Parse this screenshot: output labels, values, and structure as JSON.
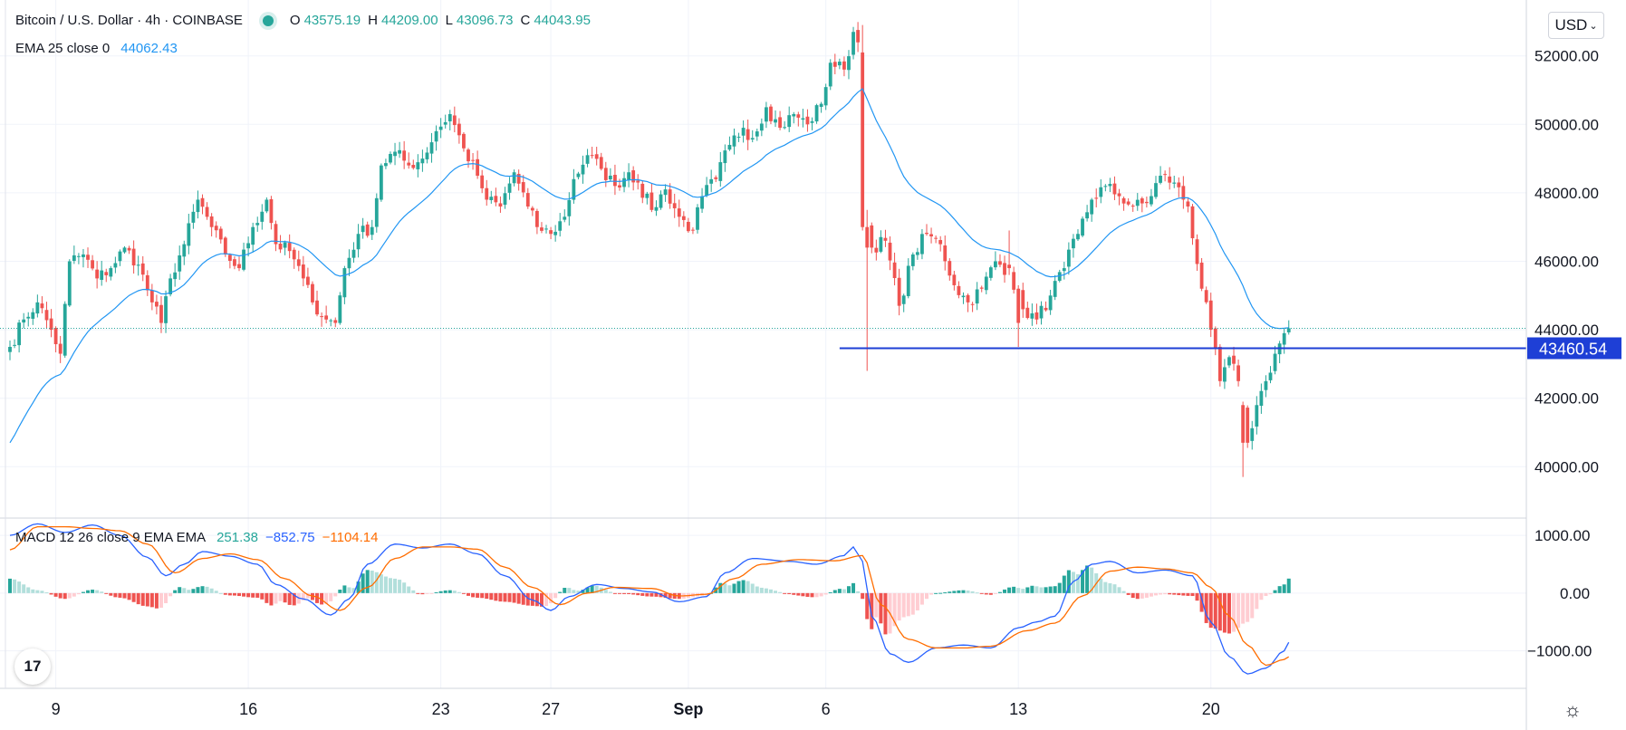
{
  "header": {
    "symbol_title": "Bitcoin / U.S. Dollar · 4h · COINBASE",
    "ohlc": [
      {
        "label": "O",
        "value": "43575.19"
      },
      {
        "label": "H",
        "value": "44209.00"
      },
      {
        "label": "L",
        "value": "43096.73"
      },
      {
        "label": "C",
        "value": "44043.95"
      }
    ],
    "ema_label": "EMA 25 close 0",
    "ema_value": "44062.43",
    "macd_label": "MACD 12 26 close 9 EMA EMA",
    "macd_values": [
      "251.38",
      "−852.75",
      "−1104.14"
    ]
  },
  "currency_button": {
    "label": "USD",
    "icon": "chevron-down-icon"
  },
  "logo_text": "17",
  "colors": {
    "up": "#26a69a",
    "down": "#ef5350",
    "ema": "#2196f3",
    "macd_line": "#2962ff",
    "signal_line": "#ff6d00",
    "hist_up_strong": "#26a69a",
    "hist_up_weak": "#b2dfdb",
    "hist_down_strong": "#ef5350",
    "hist_down_weak": "#ffcdd2",
    "grid": "#f0f3fa",
    "level_line": "#1e3fd6"
  },
  "chart_data": [
    {
      "type": "candlestick",
      "title": "Bitcoin / U.S. Dollar · 4h · COINBASE",
      "ylim": [
        38500,
        53500
      ],
      "x_range_bars": [
        0,
        258
      ],
      "y_ticks": [
        "40000.00",
        "42000.00",
        "44000.00",
        "46000.00",
        "48000.00",
        "50000.00",
        "52000.00"
      ],
      "x_tick_labels": [
        {
          "label": "9",
          "bar": 10
        },
        {
          "label": "16",
          "bar": 52
        },
        {
          "label": "23",
          "bar": 94
        },
        {
          "label": "27",
          "bar": 118
        },
        {
          "label": "Sep",
          "bar": 148
        },
        {
          "label": "6",
          "bar": 178
        },
        {
          "label": "13",
          "bar": 220
        },
        {
          "label": "20",
          "bar": 262
        }
      ],
      "anchors": [
        [
          0,
          43500
        ],
        [
          3,
          44300
        ],
        [
          6,
          44800
        ],
        [
          9,
          44000
        ],
        [
          11,
          43300
        ],
        [
          13,
          46000
        ],
        [
          16,
          46200
        ],
        [
          19,
          45500
        ],
        [
          22,
          45800
        ],
        [
          25,
          46400
        ],
        [
          28,
          45900
        ],
        [
          31,
          44800
        ],
        [
          33,
          44200
        ],
        [
          35,
          45500
        ],
        [
          38,
          46500
        ],
        [
          41,
          47800
        ],
        [
          44,
          47000
        ],
        [
          47,
          46200
        ],
        [
          50,
          45800
        ],
        [
          53,
          47000
        ],
        [
          56,
          47800
        ],
        [
          58,
          46500
        ],
        [
          61,
          46300
        ],
        [
          64,
          45500
        ],
        [
          66,
          44800
        ],
        [
          69,
          44300
        ],
        [
          71,
          44200
        ],
        [
          73,
          45800
        ],
        [
          76,
          46800
        ],
        [
          79,
          47000
        ],
        [
          81,
          48800
        ],
        [
          84,
          49200
        ],
        [
          87,
          48800
        ],
        [
          90,
          49000
        ],
        [
          93,
          49800
        ],
        [
          96,
          50300
        ],
        [
          99,
          49300
        ],
        [
          102,
          48500
        ],
        [
          104,
          47800
        ],
        [
          107,
          47600
        ],
        [
          110,
          48600
        ],
        [
          113,
          47600
        ],
        [
          115,
          47000
        ],
        [
          118,
          46800
        ],
        [
          121,
          47300
        ],
        [
          123,
          48400
        ],
        [
          126,
          49100
        ],
        [
          129,
          48700
        ],
        [
          132,
          48200
        ],
        [
          135,
          48600
        ],
        [
          137,
          48300
        ],
        [
          140,
          47500
        ],
        [
          143,
          48100
        ],
        [
          146,
          47300
        ],
        [
          149,
          46900
        ],
        [
          151,
          47900
        ],
        [
          154,
          48400
        ],
        [
          157,
          49400
        ],
        [
          160,
          49900
        ],
        [
          162,
          49600
        ],
        [
          165,
          50500
        ],
        [
          168,
          49900
        ],
        [
          171,
          50300
        ],
        [
          174,
          50000
        ],
        [
          177,
          50600
        ],
        [
          179,
          51800
        ],
        [
          182,
          51600
        ],
        [
          184,
          52700
        ],
        [
          186,
          52100
        ],
        [
          187,
          47000
        ],
        [
          188,
          46400
        ],
        [
          191,
          46600
        ],
        [
          194,
          44700
        ],
        [
          197,
          46200
        ],
        [
          200,
          46800
        ],
        [
          203,
          46500
        ],
        [
          206,
          45300
        ],
        [
          209,
          44800
        ],
        [
          212,
          45200
        ],
        [
          215,
          46000
        ],
        [
          218,
          45700
        ],
        [
          221,
          44600
        ],
        [
          224,
          44300
        ],
        [
          227,
          45000
        ],
        [
          230,
          45800
        ],
        [
          233,
          46800
        ],
        [
          236,
          47800
        ],
        [
          239,
          48200
        ],
        [
          242,
          47900
        ],
        [
          245,
          47600
        ],
        [
          248,
          47700
        ],
        [
          251,
          48500
        ],
        [
          254,
          48300
        ],
        [
          257,
          47600
        ],
        [
          260,
          45200
        ],
        [
          262,
          44000
        ],
        [
          264,
          42500
        ],
        [
          266,
          43200
        ],
        [
          268,
          42500
        ],
        [
          270,
          40700
        ],
        [
          272,
          41800
        ],
        [
          274,
          42500
        ],
        [
          276,
          43300
        ],
        [
          278,
          43900
        ],
        [
          279,
          44043.95
        ]
      ],
      "big_moves": [
        [
          186,
          52100,
          47000,
          52900,
          46900
        ],
        [
          187,
          47000,
          46400,
          47500,
          42800
        ],
        [
          269,
          41800,
          40700,
          41900,
          39700
        ],
        [
          220,
          45200,
          44200,
          45300,
          43500
        ],
        [
          218,
          45900,
          45800,
          46900,
          45600
        ]
      ],
      "series": [
        {
          "name": "EMA 25 close 0",
          "last_value": 44062.43,
          "start_value": 40700
        }
      ],
      "annotations": [
        {
          "type": "horizontal_line",
          "value": 43460.54,
          "label": "43460.54",
          "from_bar": 181
        },
        {
          "type": "dotted_last_price",
          "value": 44043.95
        }
      ],
      "price_badge": "43460.54"
    },
    {
      "type": "macd",
      "title": "MACD 12 26 close 9 EMA EMA",
      "ylim": [
        -1650,
        1300
      ],
      "y_ticks": [
        "1000.00",
        "0.00",
        "−1000.00"
      ],
      "macd_anchors": [
        [
          0,
          1000
        ],
        [
          6,
          1200
        ],
        [
          12,
          1050
        ],
        [
          18,
          1180
        ],
        [
          24,
          1000
        ],
        [
          30,
          620
        ],
        [
          34,
          300
        ],
        [
          38,
          500
        ],
        [
          42,
          720
        ],
        [
          48,
          640
        ],
        [
          54,
          500
        ],
        [
          58,
          150
        ],
        [
          64,
          -100
        ],
        [
          70,
          -380
        ],
        [
          74,
          -100
        ],
        [
          78,
          500
        ],
        [
          84,
          850
        ],
        [
          90,
          780
        ],
        [
          96,
          850
        ],
        [
          102,
          680
        ],
        [
          108,
          300
        ],
        [
          114,
          -120
        ],
        [
          118,
          -300
        ],
        [
          122,
          -60
        ],
        [
          128,
          150
        ],
        [
          134,
          80
        ],
        [
          140,
          20
        ],
        [
          146,
          -150
        ],
        [
          152,
          -60
        ],
        [
          156,
          350
        ],
        [
          162,
          600
        ],
        [
          170,
          550
        ],
        [
          176,
          500
        ],
        [
          182,
          650
        ],
        [
          184,
          800
        ],
        [
          186,
          550
        ],
        [
          188,
          -400
        ],
        [
          192,
          -1050
        ],
        [
          196,
          -1200
        ],
        [
          202,
          -950
        ],
        [
          208,
          -900
        ],
        [
          214,
          -950
        ],
        [
          220,
          -600
        ],
        [
          224,
          -500
        ],
        [
          228,
          -400
        ],
        [
          232,
          200
        ],
        [
          236,
          500
        ],
        [
          240,
          550
        ],
        [
          246,
          350
        ],
        [
          252,
          400
        ],
        [
          258,
          300
        ],
        [
          262,
          -500
        ],
        [
          266,
          -1100
        ],
        [
          270,
          -1400
        ],
        [
          274,
          -1300
        ],
        [
          278,
          -1000
        ],
        [
          279,
          -852.75
        ]
      ],
      "signal_anchors": [
        [
          0,
          750
        ],
        [
          6,
          1150
        ],
        [
          12,
          1150
        ],
        [
          18,
          1120
        ],
        [
          24,
          1080
        ],
        [
          30,
          850
        ],
        [
          36,
          350
        ],
        [
          42,
          600
        ],
        [
          48,
          680
        ],
        [
          54,
          580
        ],
        [
          60,
          250
        ],
        [
          66,
          -50
        ],
        [
          72,
          -300
        ],
        [
          78,
          100
        ],
        [
          84,
          600
        ],
        [
          90,
          800
        ],
        [
          96,
          800
        ],
        [
          102,
          760
        ],
        [
          108,
          450
        ],
        [
          114,
          100
        ],
        [
          120,
          -200
        ],
        [
          126,
          0
        ],
        [
          132,
          100
        ],
        [
          140,
          80
        ],
        [
          146,
          -50
        ],
        [
          152,
          -20
        ],
        [
          158,
          250
        ],
        [
          164,
          500
        ],
        [
          172,
          580
        ],
        [
          180,
          560
        ],
        [
          186,
          650
        ],
        [
          190,
          -200
        ],
        [
          196,
          -800
        ],
        [
          202,
          -950
        ],
        [
          208,
          -950
        ],
        [
          214,
          -920
        ],
        [
          222,
          -650
        ],
        [
          228,
          -520
        ],
        [
          234,
          -50
        ],
        [
          240,
          380
        ],
        [
          246,
          450
        ],
        [
          252,
          420
        ],
        [
          258,
          350
        ],
        [
          262,
          100
        ],
        [
          266,
          -400
        ],
        [
          270,
          -900
        ],
        [
          274,
          -1250
        ],
        [
          278,
          -1150
        ],
        [
          279,
          -1104.14
        ]
      ],
      "last_values": {
        "macd": -852.75,
        "signal": -1104.14,
        "histogram": 251.38
      }
    }
  ]
}
